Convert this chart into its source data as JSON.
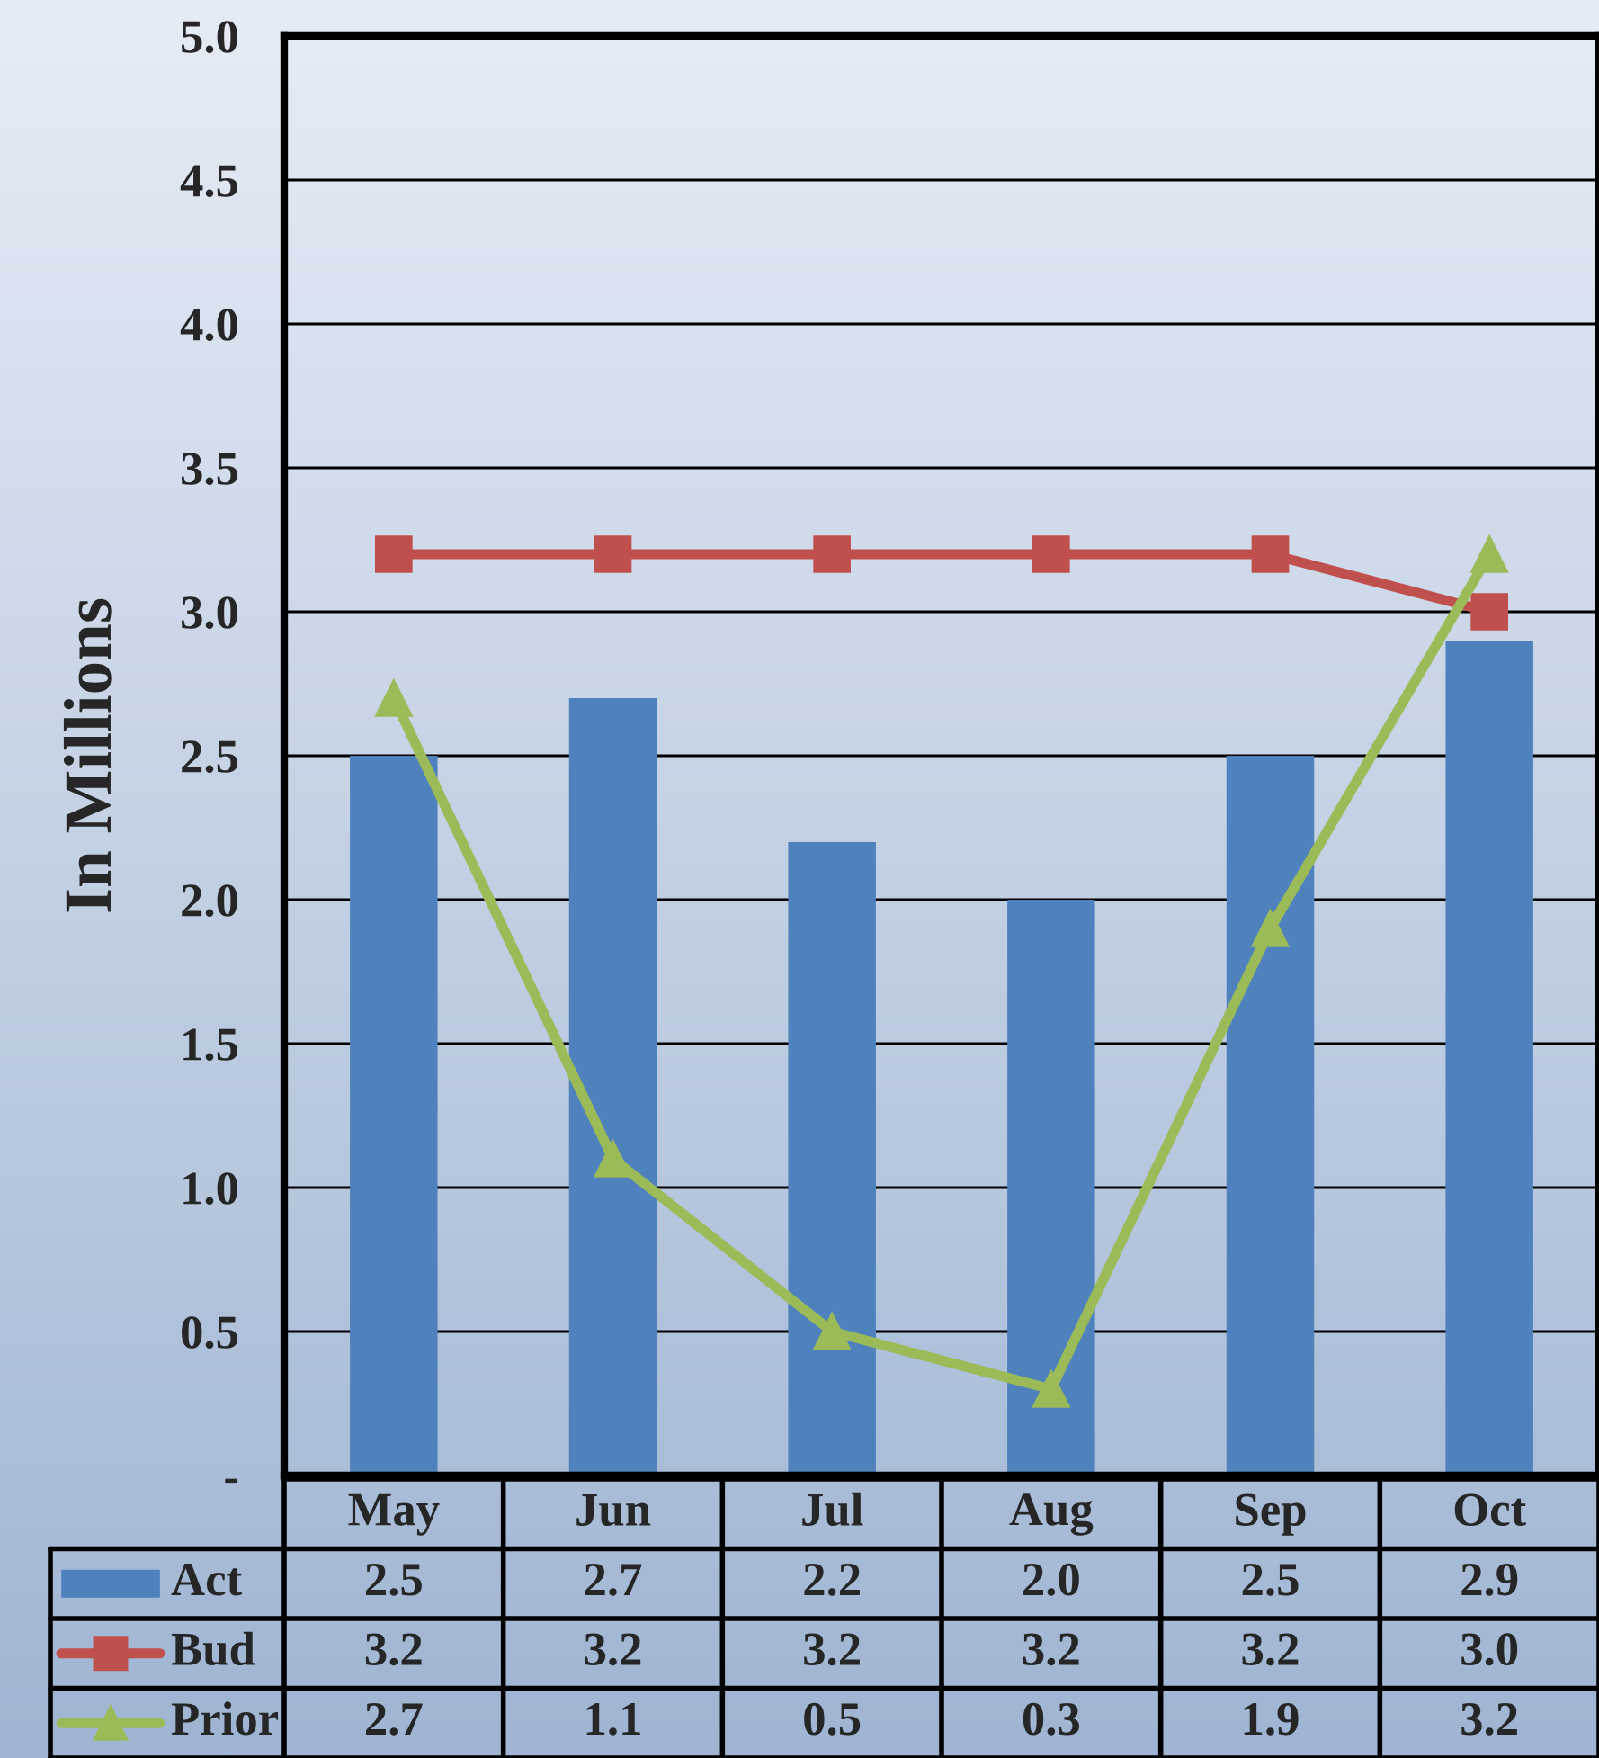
{
  "chart_data": {
    "type": "bar",
    "ylabel": "In Millions",
    "categories": [
      "May",
      "Jun",
      "Jul",
      "Aug",
      "Sep",
      "Oct"
    ],
    "series": [
      {
        "name": "Act",
        "color": "#4f81bd",
        "values": [
          2.5,
          2.7,
          2.2,
          2.0,
          2.5,
          2.9
        ],
        "value_labels": [
          "2.5",
          "2.7",
          "2.2",
          "2.0",
          "2.5",
          "2.9"
        ]
      },
      {
        "name": "Bud",
        "type": "line",
        "marker": "square",
        "color": "#c0504d",
        "values": [
          3.2,
          3.2,
          3.2,
          3.2,
          3.2,
          3.0
        ],
        "value_labels": [
          "3.2",
          "3.2",
          "3.2",
          "3.2",
          "3.2",
          "3.0"
        ]
      },
      {
        "name": "Prior",
        "type": "line",
        "marker": "triangle",
        "color": "#9bbb59",
        "values": [
          2.7,
          1.1,
          0.5,
          0.3,
          1.9,
          3.2
        ],
        "value_labels": [
          "2.7",
          "1.1",
          "0.5",
          "0.3",
          "1.9",
          "3.2"
        ]
      }
    ],
    "ylim": [
      0,
      5
    ],
    "yticks": [
      {
        "value": 0,
        "label": "-"
      },
      {
        "value": 0.5,
        "label": "0.5"
      },
      {
        "value": 1,
        "label": "1.0"
      },
      {
        "value": 1.5,
        "label": "1.5"
      },
      {
        "value": 2,
        "label": "2.0"
      },
      {
        "value": 2.5,
        "label": "2.5"
      },
      {
        "value": 3,
        "label": "3.0"
      },
      {
        "value": 3.5,
        "label": "3.5"
      },
      {
        "value": 4,
        "label": "4.0"
      },
      {
        "value": 4.5,
        "label": "4.5"
      },
      {
        "value": 5,
        "label": "5.0"
      }
    ],
    "grid": "y",
    "legend": "bottom"
  }
}
